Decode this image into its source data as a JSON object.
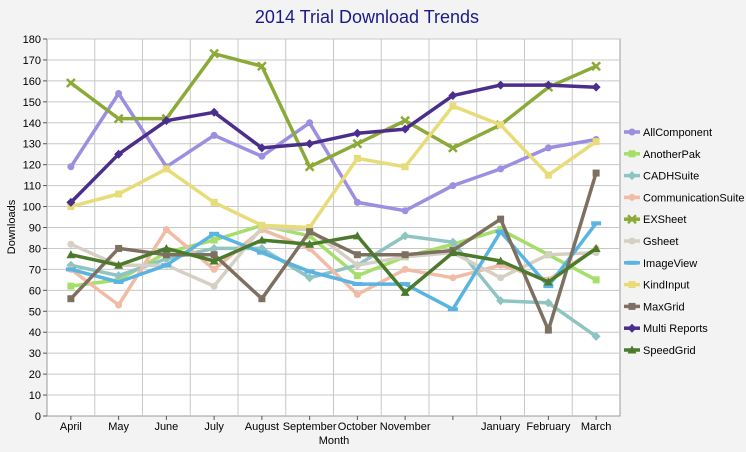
{
  "chart_data": {
    "type": "line",
    "title": "2014 Trial Download Trends",
    "xlabel": "Month",
    "ylabel": "Downloads",
    "ylim": [
      0,
      180
    ],
    "y_ticks": [
      0,
      10,
      20,
      30,
      40,
      50,
      60,
      70,
      80,
      90,
      100,
      110,
      120,
      130,
      140,
      150,
      160,
      170,
      180
    ],
    "categories": [
      "April",
      "May",
      "June",
      "July",
      "August",
      "September",
      "October",
      "November",
      "",
      "January",
      "February",
      "March"
    ],
    "grid": true,
    "legend_position": "right",
    "series": [
      {
        "name": "AllComponent",
        "color": "#9c8ee0",
        "marker": "circle",
        "values": [
          119,
          154,
          119,
          134,
          124,
          140,
          102,
          98,
          110,
          118,
          128,
          132
        ]
      },
      {
        "name": "AnotherPak",
        "color": "#a6de6a",
        "marker": "square",
        "values": [
          62,
          65,
          78,
          84,
          91,
          86,
          67,
          76,
          82,
          89,
          77,
          65
        ]
      },
      {
        "name": "CADHSuite",
        "color": "#8ec5c2",
        "marker": "diamond",
        "values": [
          72,
          67,
          75,
          80,
          80,
          66,
          72,
          86,
          83,
          55,
          54,
          38
        ]
      },
      {
        "name": "CommunicationSuite",
        "color": "#f0bca6",
        "marker": "circle",
        "values": [
          70,
          53,
          89,
          70,
          89,
          80,
          58,
          70,
          66,
          72,
          65,
          80
        ]
      },
      {
        "name": "EXSheet",
        "color": "#8caa38",
        "marker": "x",
        "values": [
          159,
          142,
          142,
          173,
          167,
          119,
          130,
          141,
          128,
          139,
          157,
          167
        ]
      },
      {
        "name": "Gsheet",
        "color": "#d6d0c4",
        "marker": "circle",
        "values": [
          82,
          72,
          72,
          62,
          90,
          89,
          72,
          76,
          78,
          66,
          77,
          78
        ]
      },
      {
        "name": "ImageView",
        "color": "#5ab4e2",
        "marker": "dash",
        "values": [
          70,
          64,
          72,
          87,
          78,
          69,
          63,
          63,
          51,
          88,
          62,
          92
        ]
      },
      {
        "name": "KindInput",
        "color": "#e8dc78",
        "marker": "square",
        "values": [
          100,
          106,
          118,
          102,
          91,
          90,
          123,
          119,
          148,
          139,
          115,
          131
        ]
      },
      {
        "name": "MaxGrid",
        "color": "#7d7061",
        "marker": "square",
        "values": [
          56,
          80,
          77,
          77,
          56,
          88,
          77,
          77,
          79,
          94,
          41,
          116
        ]
      },
      {
        "name": "Multi Reports",
        "color": "#4b2e8c",
        "marker": "diamond",
        "values": [
          102,
          125,
          141,
          145,
          128,
          130,
          135,
          137,
          153,
          158,
          158,
          157
        ]
      },
      {
        "name": "SpeedGrid",
        "color": "#4c7a2c",
        "marker": "triangle",
        "values": [
          77,
          72,
          80,
          74,
          84,
          82,
          86,
          59,
          78,
          74,
          64,
          80
        ]
      }
    ]
  }
}
